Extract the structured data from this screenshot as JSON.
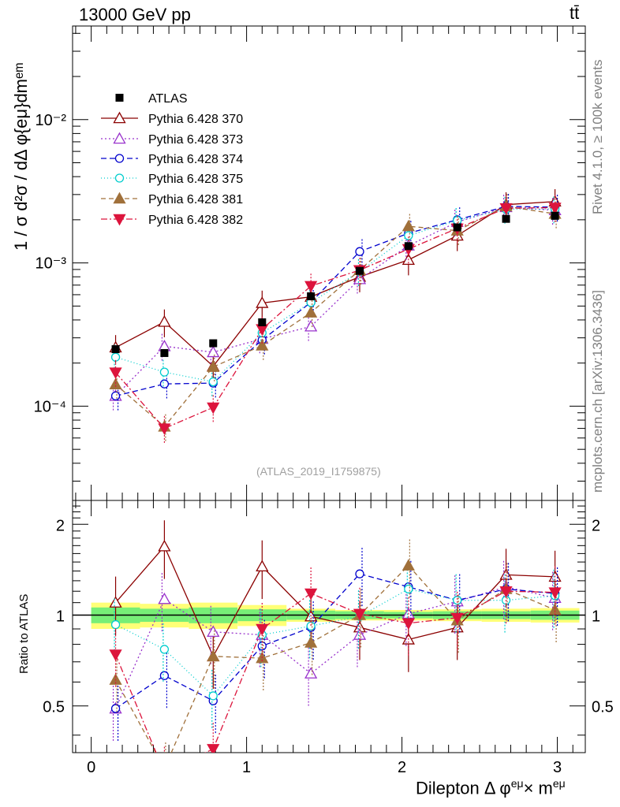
{
  "header": {
    "left": "13000 GeV pp",
    "right": "tt̄"
  },
  "side_labels": {
    "rivet": "Rivet 4.1.0, ≥ 100k events",
    "ref": "mcplots.cern.ch [arXiv:1306.3436]"
  },
  "watermark": "(ATLAS_2019_I1759875)",
  "axes": {
    "y_title": "1 / σ  d²σ / dΔ φ{eμ}dmᵉᵐ",
    "ratio_y_title": "Ratio to ATLAS",
    "x_title_main": "Dilepton Δ φ",
    "x_title_sup1": "eμ",
    "x_title_mid": "× m",
    "x_title_sup2": "eμ",
    "main_ticks": [
      "10⁻⁴",
      "10⁻³",
      "10⁻²"
    ],
    "ratio_ticks": [
      "0.5",
      "1",
      "2"
    ],
    "x_ticks": [
      "0",
      "1",
      "2",
      "3"
    ]
  },
  "chart_data": {
    "type": "scatter",
    "x": [
      0.157,
      0.471,
      0.785,
      1.1,
      1.414,
      1.728,
      2.042,
      2.356,
      2.67,
      2.985
    ],
    "x_range": [
      -0.12,
      3.18
    ],
    "y_range_log": [
      2.2e-05,
      0.045
    ],
    "ratio_range": [
      0.35,
      2.4
    ],
    "band_stat_half": [
      0.06,
      0.05,
      0.06,
      0.045,
      0.035,
      0.03,
      0.025,
      0.03,
      0.03,
      0.035
    ],
    "band_total_half": [
      0.1,
      0.09,
      0.1,
      0.08,
      0.05,
      0.04,
      0.04,
      0.045,
      0.05,
      0.055
    ],
    "data": {
      "name": "ATLAS",
      "values": [
        0.00025,
        0.000235,
        0.000275,
        0.000385,
        0.000585,
        0.00088,
        0.00131,
        0.00177,
        0.00203,
        0.00213
      ]
    },
    "series": [
      {
        "name": "Pythia 6.428 370",
        "color": "#8b0000",
        "marker": "tri-open",
        "dash": "",
        "values": [
          0.000257,
          0.000388,
          0.00019,
          0.000525,
          0.00058,
          0.0008,
          0.00105,
          0.00155,
          0.00255,
          0.00268
        ],
        "ratios": [
          1.1,
          1.69,
          0.73,
          1.45,
          0.99,
          0.91,
          0.83,
          0.91,
          1.36,
          1.34
        ]
      },
      {
        "name": "Pythia 6.428 373",
        "color": "#9932cc",
        "marker": "tri-open",
        "dash": "2,3",
        "values": [
          0.000118,
          0.000262,
          0.000238,
          0.000295,
          0.00036,
          0.00077,
          0.00132,
          0.00193,
          0.00245,
          0.00233
        ],
        "ratios": [
          0.49,
          1.13,
          0.88,
          0.86,
          0.64,
          0.86,
          1.01,
          1.11,
          1.24,
          1.14
        ]
      },
      {
        "name": "Pythia 6.428 374",
        "color": "#0000cd",
        "marker": "circ-open",
        "dash": "7,4",
        "values": [
          0.000118,
          0.000143,
          0.000145,
          0.00029,
          0.00053,
          0.0012,
          0.00161,
          0.002,
          0.00248,
          0.00245
        ],
        "ratios": [
          0.49,
          0.63,
          0.52,
          0.79,
          0.91,
          1.37,
          1.24,
          1.12,
          1.22,
          1.18
        ]
      },
      {
        "name": "Pythia 6.428 375",
        "color": "#00cdcd",
        "marker": "circ-open",
        "dash": "1,3",
        "values": [
          0.00022,
          0.000173,
          0.000148,
          0.000325,
          0.00053,
          0.00087,
          0.00155,
          0.00198,
          0.00237,
          0.00238
        ],
        "ratios": [
          0.93,
          0.77,
          0.54,
          0.86,
          0.92,
          0.99,
          1.22,
          1.12,
          1.12,
          1.16
        ]
      },
      {
        "name": "Pythia 6.428 381",
        "color": "#a0703a",
        "marker": "tri-fill",
        "dash": "6,4",
        "values": [
          0.000142,
          7.2e-05,
          0.000188,
          0.000265,
          0.00045,
          0.00089,
          0.0018,
          0.00168,
          0.00248,
          0.0022
        ],
        "ratios": [
          0.61,
          0.31,
          0.73,
          0.72,
          0.81,
          1.0,
          1.46,
          0.96,
          1.22,
          1.04
        ]
      },
      {
        "name": "Pythia 6.428 382",
        "color": "#dc143c",
        "marker": "tri-down-fill",
        "dash": "8,3,2,3",
        "values": [
          0.000172,
          7e-05,
          9.8e-05,
          0.000345,
          0.00069,
          0.00089,
          0.00125,
          0.00174,
          0.00241,
          0.00243
        ],
        "ratios": [
          0.74,
          0.3,
          0.36,
          0.9,
          1.18,
          1.01,
          0.94,
          0.98,
          1.2,
          1.19
        ]
      }
    ]
  }
}
